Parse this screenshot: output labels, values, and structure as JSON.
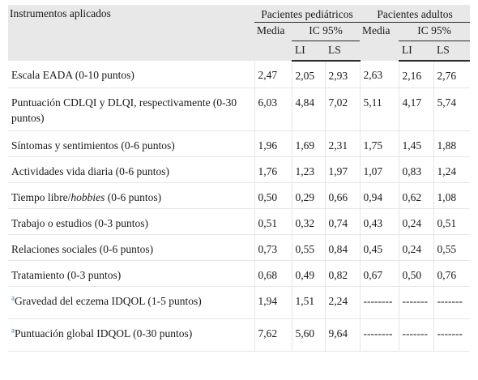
{
  "header": {
    "instruments": "Instrumentos aplicados",
    "pediatric": "Pacientes pediátricos",
    "adult": "Pacientes adultos",
    "mean": "Media",
    "ci": "IC 95%",
    "li": "LI",
    "ls": "LS"
  },
  "rows": [
    {
      "label": "Escala EADA (0-10 puntos)",
      "ped_mean": "2,47",
      "ped_li": "2,05",
      "ped_ls": "2,93",
      "ad_mean": "2,63",
      "ad_li": "2,16",
      "ad_ls": "2,76"
    },
    {
      "label": "Puntuación CDLQI y DLQI, respectivamente (0-30 puntos)",
      "ped_mean": "6,03",
      "ped_li": "4,84",
      "ped_ls": "7,02",
      "ad_mean": "5,11",
      "ad_li": "4,17",
      "ad_ls": "5,74"
    },
    {
      "label": "Síntomas y sentimientos (0-6 puntos)",
      "ped_mean": "1,96",
      "ped_li": "1,69",
      "ped_ls": "2,31",
      "ad_mean": "1,75",
      "ad_li": "1,45",
      "ad_ls": "1,88"
    },
    {
      "label": "Actividades vida diaria (0-6 puntos)",
      "ped_mean": "1,76",
      "ped_li": "1,23",
      "ped_ls": "1,97",
      "ad_mean": "1,07",
      "ad_li": "0,83",
      "ad_ls": "1,24"
    },
    {
      "label_pre": "Tiempo libre/",
      "label_em": "hobbies",
      "label_post": " (0-6 puntos)",
      "ped_mean": "0,50",
      "ped_li": "0,29",
      "ped_ls": "0,66",
      "ad_mean": "0,94",
      "ad_li": "0,62",
      "ad_ls": "1,08"
    },
    {
      "label": "Trabajo o estudios (0-3 puntos)",
      "ped_mean": "0,51",
      "ped_li": "0,32",
      "ped_ls": "0,74",
      "ad_mean": "0,43",
      "ad_li": "0,24",
      "ad_ls": "0,51"
    },
    {
      "label": "Relaciones sociales (0-6 puntos)",
      "ped_mean": "0,73",
      "ped_li": "0,55",
      "ped_ls": "0,84",
      "ad_mean": "0,45",
      "ad_li": "0,24",
      "ad_ls": "0,55"
    },
    {
      "label": "Tratamiento (0-3 puntos)",
      "ped_mean": "0,68",
      "ped_li": "0,49",
      "ped_ls": "0,82",
      "ad_mean": "0,67",
      "ad_li": "0,50",
      "ad_ls": "0,76"
    },
    {
      "note": "a",
      "label": "Gravedad del eczema IDQOL (1-5 puntos)",
      "ped_mean": "1,94",
      "ped_li": "1,51",
      "ped_ls": "2,24",
      "ad_mean": "--------",
      "ad_li": "-------",
      "ad_ls": "-------"
    },
    {
      "note": "a",
      "label": "Puntuación global IDQOL (0-30 puntos)",
      "ped_mean": "7,62",
      "ped_li": "5,60",
      "ped_ls": "9,64",
      "ad_mean": "--------",
      "ad_li": "-------",
      "ad_ls": "-------"
    }
  ]
}
